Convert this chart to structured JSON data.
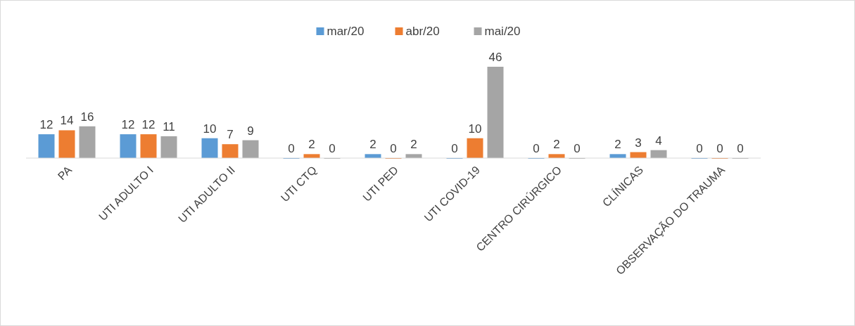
{
  "chart_data": {
    "type": "bar",
    "categories": [
      "PA",
      "UTI ADULTO I",
      "UTI ADULTO II",
      "UTI CTQ",
      "UTI PED",
      "UTI COVID-19",
      "CENTRO CIRÚRGICO",
      "CLÍNICAS",
      "OBSERVAÇÃO DO TRAUMA"
    ],
    "series": [
      {
        "name": "mar/20",
        "color": "#5b9bd5",
        "values": [
          12,
          12,
          10,
          0,
          2,
          0,
          0,
          2,
          0
        ]
      },
      {
        "name": "abr/20",
        "color": "#ed7d31",
        "values": [
          14,
          12,
          7,
          2,
          0,
          10,
          2,
          3,
          0
        ]
      },
      {
        "name": "mai/20",
        "color": "#a5a5a5",
        "values": [
          16,
          11,
          9,
          0,
          2,
          46,
          0,
          4,
          0
        ]
      }
    ],
    "data_labels": true,
    "legend": "top"
  }
}
